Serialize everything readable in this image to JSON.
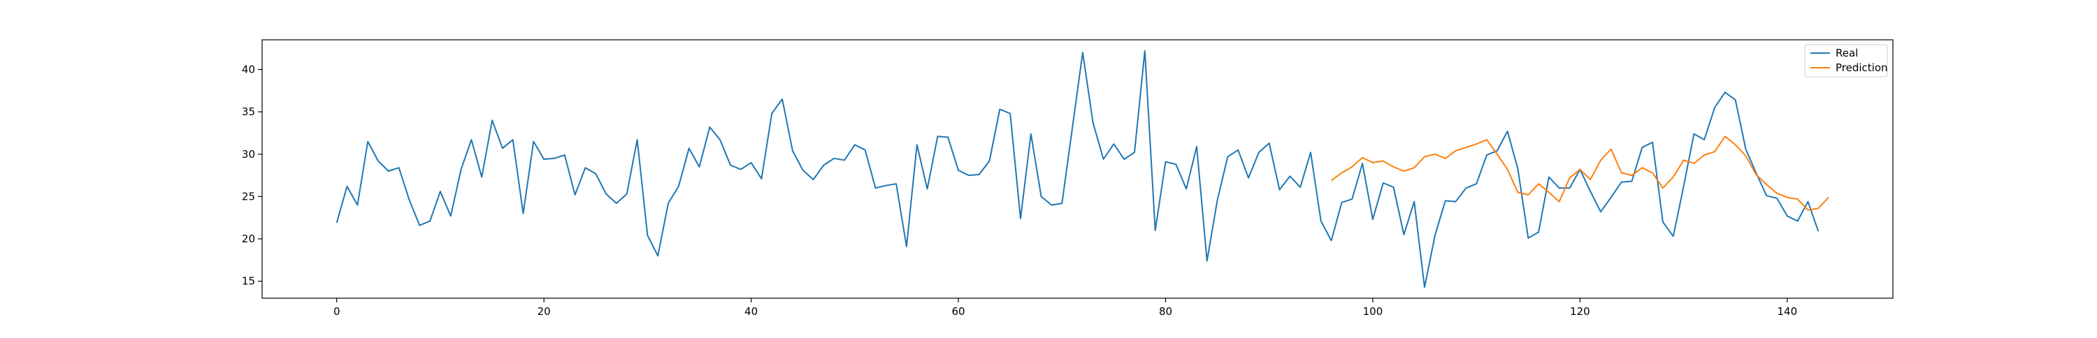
{
  "chart_data": {
    "type": "line",
    "title": "",
    "xlabel": "",
    "ylabel": "",
    "xlim": [
      -7.2,
      150.2
    ],
    "ylim": [
      13.0,
      43.5
    ],
    "xticks": [
      0,
      20,
      40,
      60,
      80,
      100,
      120,
      140
    ],
    "yticks": [
      15,
      20,
      25,
      30,
      35,
      40
    ],
    "grid": false,
    "legend": "top-right",
    "series": [
      {
        "name": "Real",
        "color": "#1f77b4",
        "x_start": 0,
        "values": [
          21.9,
          26.2,
          24.0,
          31.5,
          29.2,
          28.0,
          28.4,
          24.6,
          21.6,
          22.1,
          25.6,
          22.7,
          28.2,
          31.7,
          27.3,
          34.0,
          30.7,
          31.7,
          23.0,
          31.5,
          29.4,
          29.5,
          29.9,
          25.2,
          28.4,
          27.7,
          25.3,
          24.2,
          25.3,
          31.7,
          20.4,
          18.0,
          24.2,
          26.2,
          30.7,
          28.5,
          33.2,
          31.7,
          28.7,
          28.2,
          29.0,
          27.1,
          34.8,
          36.5,
          30.4,
          28.1,
          27.0,
          28.7,
          29.5,
          29.3,
          31.1,
          30.5,
          26.0,
          26.3,
          26.5,
          19.1,
          31.1,
          25.9,
          32.1,
          32.0,
          28.1,
          27.5,
          27.6,
          29.2,
          35.3,
          34.8,
          22.4,
          32.4,
          25.0,
          24.0,
          24.2,
          33.1,
          42.0,
          33.7,
          29.4,
          31.2,
          29.4,
          30.2,
          42.2,
          21.0,
          29.1,
          28.8,
          25.9,
          30.9,
          17.4,
          24.6,
          29.7,
          30.5,
          27.2,
          30.2,
          31.3,
          25.8,
          27.4,
          26.1,
          30.2,
          22.1,
          19.8,
          24.3,
          24.7,
          28.9,
          22.3,
          26.6,
          26.1,
          20.5,
          24.4,
          14.3,
          20.4,
          24.5,
          24.4,
          26.0,
          26.5,
          29.9,
          30.4,
          32.7,
          28.3,
          20.1,
          20.8,
          27.3,
          26.0,
          26.0,
          28.2,
          25.6,
          23.2,
          24.9,
          26.7,
          26.8,
          30.8,
          31.4,
          22.0,
          20.3,
          26.2,
          32.4,
          31.7,
          35.5,
          37.3,
          36.4,
          30.6,
          27.8,
          25.1,
          24.8,
          22.7,
          22.1,
          24.4,
          20.9
        ]
      },
      {
        "name": "Prediction",
        "color": "#ff7f0e",
        "x_start": 96,
        "values": [
          26.9,
          27.8,
          28.5,
          29.6,
          29.0,
          29.2,
          28.5,
          28.0,
          28.4,
          29.7,
          30.0,
          29.5,
          30.4,
          30.8,
          31.2,
          31.7,
          30.0,
          28.2,
          25.5,
          25.2,
          26.5,
          25.5,
          24.4,
          27.2,
          28.2,
          27.0,
          29.3,
          30.6,
          27.8,
          27.5,
          28.4,
          27.8,
          26.0,
          27.3,
          29.3,
          28.9,
          29.9,
          30.3,
          32.1,
          31.1,
          29.8,
          27.6,
          26.4,
          25.4,
          24.9,
          24.7,
          23.4,
          23.6,
          24.9
        ]
      }
    ]
  }
}
